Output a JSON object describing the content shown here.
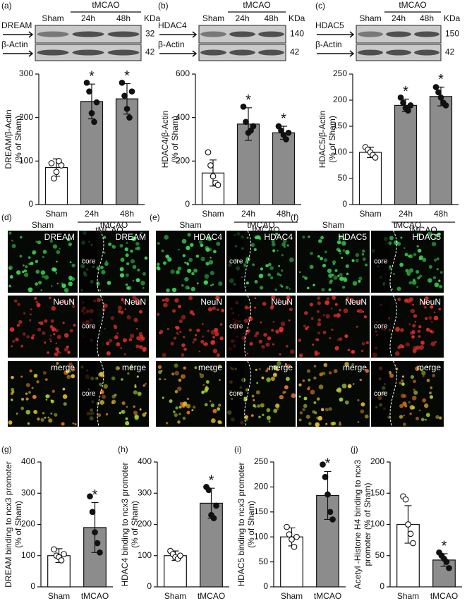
{
  "blots": [
    {
      "panel": "(a)",
      "group": "tMCAO",
      "lanes": [
        "Sham",
        "24h",
        "48h"
      ],
      "unit": "KDa",
      "bands": [
        {
          "label": "DREAM",
          "kda": 32
        },
        {
          "label": "β-Actin",
          "kda": 42
        }
      ]
    },
    {
      "panel": "(b)",
      "group": "tMCAO",
      "lanes": [
        "Sham",
        "24h",
        "48h"
      ],
      "unit": "KDa",
      "bands": [
        {
          "label": "HDAC4",
          "kda": 140
        },
        {
          "label": "β-Actin",
          "kda": 42
        }
      ]
    },
    {
      "panel": "(c)",
      "group": "tMCAO",
      "lanes": [
        "Sham",
        "24h",
        "48h"
      ],
      "unit": "KDa",
      "bands": [
        {
          "label": "HDAC5",
          "kda": 150
        },
        {
          "label": "β-Actin",
          "kda": 42
        }
      ]
    }
  ],
  "micrographs": [
    {
      "panel": "(d)",
      "columns": [
        "Sham",
        "tMCAO"
      ],
      "rows": [
        "DREAM",
        "NeuN",
        "merge"
      ],
      "region": "core"
    },
    {
      "panel": "(e)",
      "columns": [
        "Sham",
        "tMCAO"
      ],
      "rows": [
        "HDAC4",
        "NeuN",
        "merge"
      ],
      "region": "core"
    },
    {
      "panel": "(f)",
      "columns": [
        "Sham",
        "tMCAO"
      ],
      "rows": [
        "HDAC5",
        "NeuN",
        "merge"
      ],
      "region": "core"
    }
  ],
  "chart_data": [
    {
      "type": "bar",
      "y_label": [
        "DREAM/β-Actin",
        "(% of Sham)"
      ],
      "categories": [
        "Sham",
        "24h",
        "48h"
      ],
      "group_label": "tMCAO",
      "values": [
        85,
        237,
        243
      ],
      "errors": [
        20,
        40,
        35
      ],
      "points": [
        [
          95,
          60,
          75,
          100,
          90
        ],
        [
          280,
          260,
          210,
          190,
          235
        ],
        [
          280,
          250,
          220,
          200,
          260
        ]
      ],
      "colors": [
        "#ffffff",
        "#8c8c8c",
        "#8c8c8c"
      ],
      "significance": [
        null,
        "*",
        "*"
      ],
      "ylim": [
        0,
        300
      ],
      "yticks": [
        0,
        100,
        200,
        300
      ]
    },
    {
      "type": "bar",
      "y_label": [
        "HDAC4/β-Actin",
        "(% of Sham)"
      ],
      "categories": [
        "Sham",
        "24h",
        "48h"
      ],
      "group_label": "tMCAO",
      "values": [
        145,
        370,
        330
      ],
      "errors": [
        60,
        75,
        30
      ],
      "points": [
        [
          240,
          180,
          130,
          100,
          90
        ],
        [
          450,
          380,
          330,
          340,
          360
        ],
        [
          360,
          340,
          320,
          300,
          330
        ]
      ],
      "colors": [
        "#ffffff",
        "#8c8c8c",
        "#8c8c8c"
      ],
      "significance": [
        null,
        "*",
        "*"
      ],
      "ylim": [
        0,
        600
      ],
      "yticks": [
        0,
        200,
        400,
        600
      ]
    },
    {
      "type": "bar",
      "y_label": [
        "HDAC5/β-Actin",
        "(% of Sham)"
      ],
      "categories": [
        "Sham",
        "24h",
        "48h"
      ],
      "group_label": "tMCAO",
      "values": [
        100,
        190,
        207
      ],
      "errors": [
        10,
        12,
        18
      ],
      "points": [
        [
          110,
          105,
          100,
          95,
          90
        ],
        [
          205,
          195,
          185,
          180,
          190
        ],
        [
          225,
          215,
          205,
          195,
          190
        ]
      ],
      "colors": [
        "#ffffff",
        "#8c8c8c",
        "#8c8c8c"
      ],
      "significance": [
        null,
        "*",
        "*"
      ],
      "ylim": [
        0,
        250
      ],
      "yticks": [
        0,
        50,
        100,
        150,
        200,
        250
      ]
    },
    {
      "type": "bar",
      "panel": "(g)",
      "y_label": [
        "DREAM  binding  to ncx3 promoter",
        "(% of Sham)"
      ],
      "categories": [
        "Sham",
        "tMCAO"
      ],
      "values": [
        100,
        190
      ],
      "errors": [
        22,
        80
      ],
      "points": [
        [
          120,
          100,
          95,
          85,
          105
        ],
        [
          290,
          240,
          175,
          140,
          110
        ]
      ],
      "colors": [
        "#ffffff",
        "#8c8c8c"
      ],
      "significance": [
        null,
        "*"
      ],
      "ylim": [
        0,
        400
      ],
      "yticks": [
        0,
        100,
        200,
        300,
        400
      ]
    },
    {
      "type": "bar",
      "panel": "(h)",
      "y_label": [
        "HDAC4 binding  to ncx3 promoter",
        "(% of Sham)"
      ],
      "categories": [
        "Sham",
        "tMCAO"
      ],
      "values": [
        100,
        268
      ],
      "errors": [
        15,
        48
      ],
      "points": [
        [
          115,
          105,
          95,
          90,
          100
        ],
        [
          320,
          310,
          230,
          220,
          260
        ]
      ],
      "colors": [
        "#ffffff",
        "#8c8c8c"
      ],
      "significance": [
        null,
        "*"
      ],
      "ylim": [
        0,
        400
      ],
      "yticks": [
        0,
        100,
        200,
        300,
        400
      ]
    },
    {
      "type": "bar",
      "panel": "(i)",
      "y_label": [
        "HDAC5 binding  to ncx3 promoter",
        "(% of Sham)"
      ],
      "categories": [
        "Sham",
        "tMCAO"
      ],
      "values": [
        100,
        183
      ],
      "errors": [
        18,
        48
      ],
      "points": [
        [
          120,
          105,
          95,
          80,
          100
        ],
        [
          245,
          220,
          185,
          150,
          135
        ]
      ],
      "colors": [
        "#ffffff",
        "#8c8c8c"
      ],
      "significance": [
        null,
        "*"
      ],
      "ylim": [
        0,
        250
      ],
      "yticks": [
        0,
        50,
        100,
        150,
        200,
        250
      ]
    },
    {
      "type": "bar",
      "panel": "(j)",
      "y_label": [
        "Acetyl -Histone  H4 binding  to ncx3",
        "promoter (% of Sham)"
      ],
      "categories": [
        "Sham",
        "tMCAO"
      ],
      "values": [
        100,
        43
      ],
      "errors": [
        30,
        10
      ],
      "points": [
        [
          145,
          140,
          100,
          85,
          70
        ],
        [
          55,
          50,
          45,
          40,
          30
        ]
      ],
      "colors": [
        "#ffffff",
        "#8c8c8c"
      ],
      "significance": [
        null,
        "*"
      ],
      "ylim": [
        0,
        200
      ],
      "yticks": [
        0,
        50,
        100,
        150,
        200
      ]
    }
  ]
}
